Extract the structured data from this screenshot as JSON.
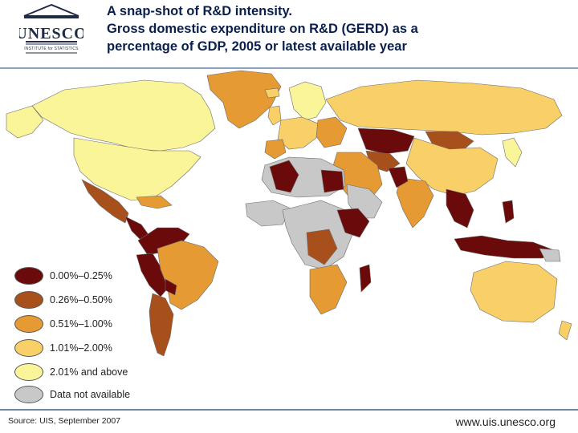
{
  "header": {
    "logo_text": "UNESCO",
    "logo_subtitle": "INSTITUTE for STATISTICS",
    "title_lines": [
      "A snap-shot of R&D intensity.",
      "Gross domestic expenditure on R&D (GERD) as a",
      "percentage of GDP, 2005 or latest available year"
    ]
  },
  "legend": [
    {
      "label": "0.00%–0.25%",
      "color": "#6b0a0a"
    },
    {
      "label": "0.26%–0.50%",
      "color": "#a8501c"
    },
    {
      "label": "0.51%–1.00%",
      "color": "#e59a33"
    },
    {
      "label": "1.01%–2.00%",
      "color": "#f9cf67"
    },
    {
      "label": "2.01% and above",
      "color": "#fbf59a"
    },
    {
      "label": "Data not available",
      "color": "#c8c8c8"
    }
  ],
  "footer": {
    "source": "Source: UIS, September 2007",
    "url": "www.uis.unesco.org"
  }
}
